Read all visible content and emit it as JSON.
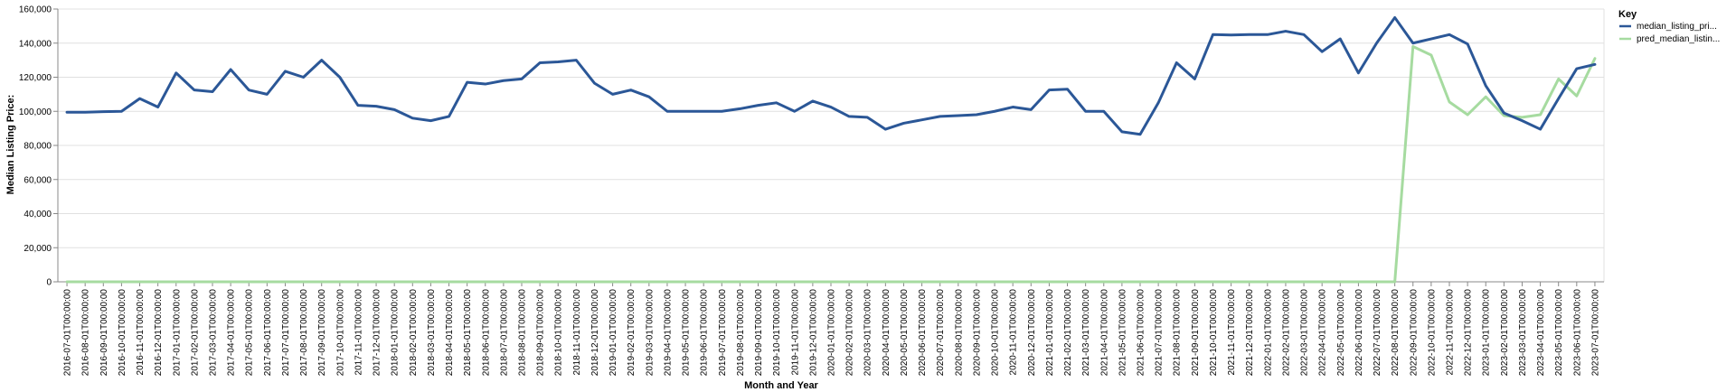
{
  "chart_data": {
    "type": "line",
    "xlabel": "Month and Year",
    "ylabel": "Median Listing Price:",
    "ylim": [
      0,
      160000
    ],
    "yticks": [
      "0",
      "20,000",
      "40,000",
      "60,000",
      "80,000",
      "100,000",
      "120,000",
      "140,000",
      "160,000"
    ],
    "grid": true,
    "legend": {
      "title": "Key",
      "position": "top-right"
    },
    "x": [
      "2016-07-01T00:00:00",
      "2016-08-01T00:00:00",
      "2016-09-01T00:00:00",
      "2016-10-01T00:00:00",
      "2016-11-01T00:00:00",
      "2016-12-01T00:00:00",
      "2017-01-01T00:00:00",
      "2017-02-01T00:00:00",
      "2017-03-01T00:00:00",
      "2017-04-01T00:00:00",
      "2017-05-01T00:00:00",
      "2017-06-01T00:00:00",
      "2017-07-01T00:00:00",
      "2017-08-01T00:00:00",
      "2017-09-01T00:00:00",
      "2017-10-01T00:00:00",
      "2017-11-01T00:00:00",
      "2017-12-01T00:00:00",
      "2018-01-01T00:00:00",
      "2018-02-01T00:00:00",
      "2018-03-01T00:00:00",
      "2018-04-01T00:00:00",
      "2018-05-01T00:00:00",
      "2018-06-01T00:00:00",
      "2018-07-01T00:00:00",
      "2018-08-01T00:00:00",
      "2018-09-01T00:00:00",
      "2018-10-01T00:00:00",
      "2018-11-01T00:00:00",
      "2018-12-01T00:00:00",
      "2019-01-01T00:00:00",
      "2019-02-01T00:00:00",
      "2019-03-01T00:00:00",
      "2019-04-01T00:00:00",
      "2019-05-01T00:00:00",
      "2019-06-01T00:00:00",
      "2019-07-01T00:00:00",
      "2019-08-01T00:00:00",
      "2019-09-01T00:00:00",
      "2019-10-01T00:00:00",
      "2019-11-01T00:00:00",
      "2019-12-01T00:00:00",
      "2020-01-01T00:00:00",
      "2020-02-01T00:00:00",
      "2020-03-01T00:00:00",
      "2020-04-01T00:00:00",
      "2020-05-01T00:00:00",
      "2020-06-01T00:00:00",
      "2020-07-01T00:00:00",
      "2020-08-01T00:00:00",
      "2020-09-01T00:00:00",
      "2020-10-01T00:00:00",
      "2020-11-01T00:00:00",
      "2020-12-01T00:00:00",
      "2021-01-01T00:00:00",
      "2021-02-01T00:00:00",
      "2021-03-01T00:00:00",
      "2021-04-01T00:00:00",
      "2021-05-01T00:00:00",
      "2021-06-01T00:00:00",
      "2021-07-01T00:00:00",
      "2021-08-01T00:00:00",
      "2021-09-01T00:00:00",
      "2021-10-01T00:00:00",
      "2021-11-01T00:00:00",
      "2021-12-01T00:00:00",
      "2022-01-01T00:00:00",
      "2022-02-01T00:00:00",
      "2022-03-01T00:00:00",
      "2022-04-01T00:00:00",
      "2022-05-01T00:00:00",
      "2022-06-01T00:00:00",
      "2022-07-01T00:00:00",
      "2022-08-01T00:00:00",
      "2022-09-01T00:00:00",
      "2022-10-01T00:00:00",
      "2022-11-01T00:00:00",
      "2022-12-01T00:00:00",
      "2023-01-01T00:00:00",
      "2023-02-01T00:00:00",
      "2023-03-01T00:00:00",
      "2023-04-01T00:00:00",
      "2023-05-01T00:00:00",
      "2023-06-01T00:00:00",
      "2023-07-01T00:00:00"
    ],
    "series": [
      {
        "name": "median_listing_pri...",
        "color": "#2b5797",
        "values": [
          99500,
          99500,
          99800,
          100000,
          107500,
          102500,
          122500,
          112500,
          111500,
          124500,
          112500,
          110000,
          123500,
          120000,
          130000,
          120000,
          103500,
          103000,
          101000,
          96000,
          94500,
          97000,
          117000,
          116000,
          118000,
          119000,
          128500,
          129000,
          130000,
          116500,
          110000,
          112500,
          108500,
          100000,
          100000,
          100000,
          100000,
          101500,
          103500,
          105000,
          100000,
          106000,
          102500,
          97000,
          96500,
          89500,
          93000,
          95000,
          97000,
          97500,
          98000,
          100000,
          102500,
          101000,
          112500,
          113000,
          100000,
          100000,
          88000,
          86500,
          105000,
          128500,
          119000,
          145000,
          144800,
          145000,
          145000,
          147000,
          145000,
          135000,
          142500,
          122500,
          140000,
          155000,
          140000,
          142500,
          145000,
          139500,
          115000,
          99000,
          94500,
          89500,
          107500,
          125000,
          127500
        ]
      },
      {
        "name": "pred_median_listin...",
        "color": "#a6dba0",
        "values": [
          0,
          0,
          0,
          0,
          0,
          0,
          0,
          0,
          0,
          0,
          0,
          0,
          0,
          0,
          0,
          0,
          0,
          0,
          0,
          0,
          0,
          0,
          0,
          0,
          0,
          0,
          0,
          0,
          0,
          0,
          0,
          0,
          0,
          0,
          0,
          0,
          0,
          0,
          0,
          0,
          0,
          0,
          0,
          0,
          0,
          0,
          0,
          0,
          0,
          0,
          0,
          0,
          0,
          0,
          0,
          0,
          0,
          0,
          0,
          0,
          0,
          0,
          0,
          0,
          0,
          0,
          0,
          0,
          0,
          0,
          0,
          0,
          0,
          0,
          138000,
          133000,
          105500,
          98000,
          108500,
          97500,
          96500,
          98000,
          119000,
          109000,
          131000
        ]
      }
    ]
  }
}
